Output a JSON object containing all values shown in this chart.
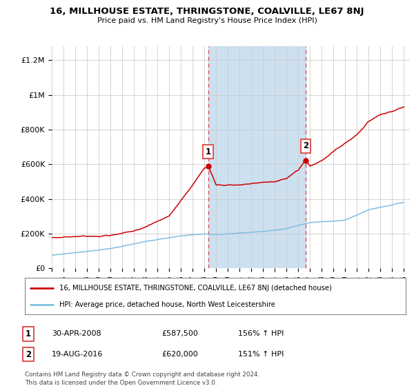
{
  "title": "16, MILLHOUSE ESTATE, THRINGSTONE, COALVILLE, LE67 8NJ",
  "subtitle": "Price paid vs. HM Land Registry's House Price Index (HPI)",
  "ylabel_ticks": [
    "£0",
    "£200K",
    "£400K",
    "£600K",
    "£800K",
    "£1M",
    "£1.2M"
  ],
  "ytick_values": [
    0,
    200000,
    400000,
    600000,
    800000,
    1000000,
    1200000
  ],
  "ylim": [
    0,
    1280000
  ],
  "xlim_start": 1995.0,
  "xlim_end": 2025.5,
  "sale1_date": 2008.33,
  "sale1_price": 587500,
  "sale1_label": "1",
  "sale2_date": 2016.63,
  "sale2_price": 620000,
  "sale2_label": "2",
  "hpi_color": "#7fbfdf",
  "price_color": "#cc0000",
  "sale_marker_color": "#cc0000",
  "vline_color": "#e05050",
  "shade_color": "#cce0f0",
  "legend_line1": "16, MILLHOUSE ESTATE, THRINGSTONE, COALVILLE, LE67 8NJ (detached house)",
  "legend_line2": "HPI: Average price, detached house, North West Leicestershire",
  "table_row1": [
    "1",
    "30-APR-2008",
    "£587,500",
    "156% ↑ HPI"
  ],
  "table_row2": [
    "2",
    "19-AUG-2016",
    "£620,000",
    "151% ↑ HPI"
  ],
  "footnote": "Contains HM Land Registry data © Crown copyright and database right 2024.\nThis data is licensed under the Open Government Licence v3.0.",
  "background_color": "#ffffff",
  "plot_bg_color": "#ffffff",
  "grid_color": "#cccccc"
}
